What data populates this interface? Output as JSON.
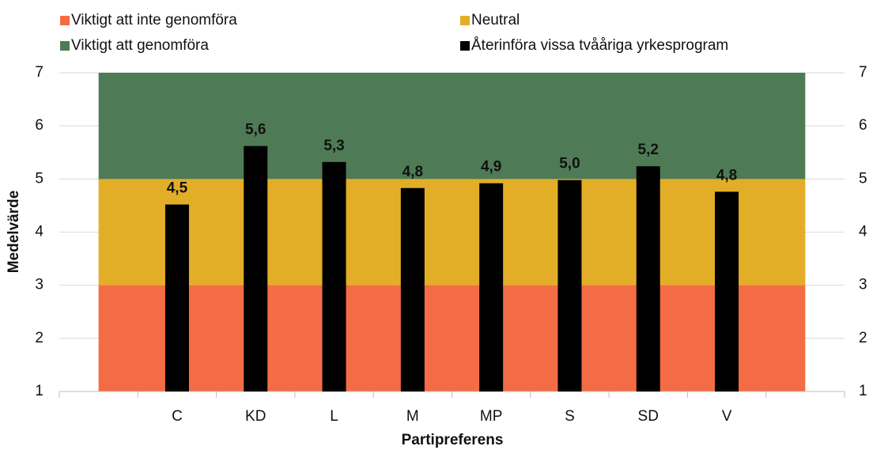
{
  "chart_data": {
    "type": "bar",
    "categories": [
      null,
      "C",
      "KD",
      "L",
      "M",
      "MP",
      "S",
      "SD",
      "V",
      null
    ],
    "bands": [
      {
        "name": "Viktigt att inte genomföra",
        "color": "#f46c45",
        "values": [
          3,
          3,
          3,
          3,
          3,
          3,
          3,
          3,
          3,
          3
        ]
      },
      {
        "name": "Neutral",
        "color": "#e3ae27",
        "values": [
          2,
          2,
          2,
          2,
          2,
          2,
          2,
          2,
          2,
          2
        ]
      },
      {
        "name": "Viktigt att genomföra",
        "color": "#4e7b56",
        "values": [
          2,
          2,
          2,
          2,
          2,
          2,
          2,
          2,
          2,
          2
        ]
      }
    ],
    "series": [
      {
        "name": "Återinföra vissa tvååriga yrkesprogram",
        "color": "#000000",
        "values": [
          null,
          4.52,
          5.62,
          5.32,
          4.83,
          4.92,
          4.98,
          5.24,
          4.76,
          null
        ],
        "value_labels": [
          null,
          "4,5",
          "5,6",
          "5,3",
          "4,8",
          "4,9",
          "5,0",
          "5,2",
          "4,8",
          null
        ]
      }
    ],
    "ylabel": "Medelvärde",
    "xlabel": "Partipreferens",
    "ylim": [
      1,
      7
    ],
    "yticks": [
      1,
      2,
      3,
      4,
      5,
      6,
      7
    ],
    "y2lim": [
      1,
      7
    ],
    "y2ticks": [
      1,
      2,
      3,
      4,
      5,
      6,
      7
    ],
    "grid": true
  }
}
